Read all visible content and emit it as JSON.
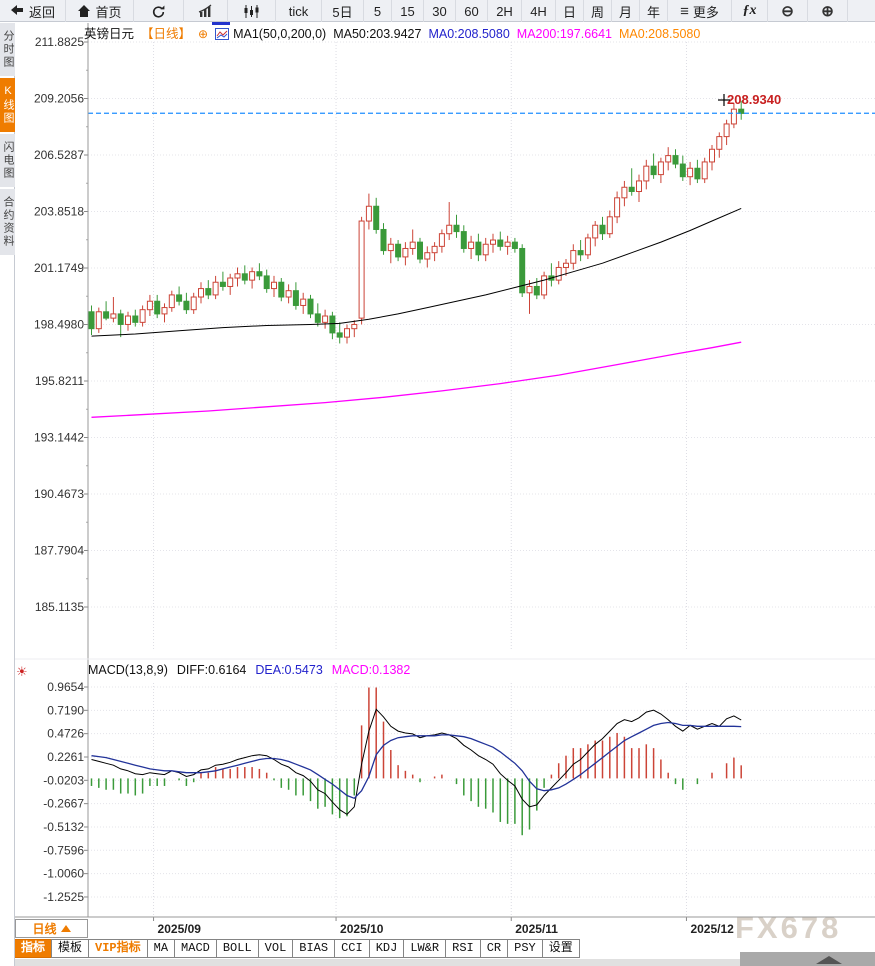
{
  "toolbar": {
    "items": [
      {
        "id": "back",
        "label": "返回"
      },
      {
        "id": "home",
        "label": "首页"
      },
      {
        "id": "refresh",
        "label": ""
      },
      {
        "id": "area-chart",
        "label": ""
      },
      {
        "id": "candle-chart",
        "label": ""
      },
      {
        "id": "tick",
        "label": "tick"
      },
      {
        "id": "5d",
        "label": "5日"
      },
      {
        "id": "m5",
        "label": "5"
      },
      {
        "id": "m15",
        "label": "15"
      },
      {
        "id": "m30",
        "label": "30"
      },
      {
        "id": "m60",
        "label": "60"
      },
      {
        "id": "h2",
        "label": "2H"
      },
      {
        "id": "h4",
        "label": "4H"
      },
      {
        "id": "day",
        "label": "日"
      },
      {
        "id": "week",
        "label": "周"
      },
      {
        "id": "month",
        "label": "月"
      },
      {
        "id": "year",
        "label": "年"
      },
      {
        "id": "more",
        "label": "更多"
      },
      {
        "id": "fx",
        "label": "ƒx"
      },
      {
        "id": "zoom-out",
        "label": "⊖"
      },
      {
        "id": "zoom-in",
        "label": "⊕"
      }
    ]
  },
  "sidebar": {
    "items": [
      {
        "label": "分时图",
        "active": false
      },
      {
        "label": "K线图",
        "active": true
      },
      {
        "label": "闪电图",
        "active": false
      },
      {
        "label": "合约资料",
        "active": false
      }
    ]
  },
  "chart_header": {
    "symbol": "英镑日元",
    "period_tag": "【日线】",
    "plus_icon": "⊕",
    "ma_settings": "MA1(50,0,200,0)",
    "ma50_label": "MA50:203.9427",
    "ma0_blue_label": "MA0:208.5080",
    "ma200_label": "MA200:197.6641",
    "ma0_orange_label": "MA0:208.5080"
  },
  "macd_header": {
    "title": "MACD(13,8,9)",
    "diff_label": "DIFF:0.6164",
    "dea_label": "DEA:0.5473",
    "macd_label": "MACD:0.1382"
  },
  "bottom": {
    "interval_label": "日线",
    "tabs": [
      {
        "label": "指标",
        "style": "active"
      },
      {
        "label": "模板",
        "style": "normal"
      },
      {
        "label": "VIP指标",
        "style": "vip"
      },
      {
        "label": "MA",
        "style": "normal"
      },
      {
        "label": "MACD",
        "style": "normal"
      },
      {
        "label": "BOLL",
        "style": "normal"
      },
      {
        "label": "VOL",
        "style": "normal"
      },
      {
        "label": "BIAS",
        "style": "normal"
      },
      {
        "label": "CCI",
        "style": "normal"
      },
      {
        "label": "KDJ",
        "style": "normal"
      },
      {
        "label": "LW&R",
        "style": "normal"
      },
      {
        "label": "RSI",
        "style": "normal"
      },
      {
        "label": "CR",
        "style": "normal"
      },
      {
        "label": "PSY",
        "style": "normal"
      },
      {
        "label": "设置",
        "style": "normal"
      }
    ]
  },
  "watermark": "FX678",
  "chart_data": [
    {
      "type": "candlestick",
      "title": "英镑日元 日线 (GBP/JPY daily)",
      "ylabel": "price",
      "y_ticks": [
        "211.8825",
        "209.2056",
        "206.5287",
        "203.8518",
        "201.1749",
        "198.4980",
        "195.8211",
        "193.1442",
        "190.4673",
        "187.7904",
        "185.1135"
      ],
      "x_ticks": [
        {
          "index": 9,
          "label": "2025/09"
        },
        {
          "index": 34,
          "label": "2025/10"
        },
        {
          "index": 58,
          "label": "2025/11"
        },
        {
          "index": 82,
          "label": "2025/12"
        }
      ],
      "last_price": 208.508,
      "marked_price_label": "208.9340",
      "colors": {
        "up": "#cc4437",
        "down": "#3a9a3a",
        "ma50": "#000000",
        "ma200": "#ff00ff",
        "last_price_line": "#1e8fff",
        "marked_price_text": "#c82020"
      },
      "ohlc": [
        [
          199.1,
          199.4,
          198.0,
          198.3
        ],
        [
          198.3,
          199.3,
          198.1,
          199.1
        ],
        [
          199.1,
          199.6,
          198.7,
          198.8
        ],
        [
          198.8,
          199.8,
          198.6,
          199.0
        ],
        [
          199.0,
          199.2,
          197.9,
          198.5
        ],
        [
          198.5,
          199.1,
          198.2,
          198.9
        ],
        [
          198.9,
          199.2,
          198.4,
          198.6
        ],
        [
          198.6,
          199.4,
          198.4,
          199.2
        ],
        [
          199.2,
          199.9,
          198.9,
          199.6
        ],
        [
          199.6,
          199.9,
          198.8,
          199.0
        ],
        [
          199.0,
          199.5,
          198.6,
          199.3
        ],
        [
          199.3,
          200.1,
          199.1,
          199.9
        ],
        [
          199.9,
          200.3,
          199.4,
          199.6
        ],
        [
          199.6,
          200.0,
          199.0,
          199.2
        ],
        [
          199.2,
          200.0,
          199.0,
          199.8
        ],
        [
          199.8,
          200.5,
          199.5,
          200.2
        ],
        [
          200.2,
          200.6,
          199.7,
          199.9
        ],
        [
          199.9,
          200.8,
          199.7,
          200.5
        ],
        [
          200.5,
          201.0,
          200.1,
          200.3
        ],
        [
          200.3,
          200.9,
          199.9,
          200.7
        ],
        [
          200.7,
          201.2,
          200.3,
          200.9
        ],
        [
          200.9,
          201.3,
          200.4,
          200.6
        ],
        [
          200.6,
          201.2,
          200.2,
          201.0
        ],
        [
          201.0,
          201.4,
          200.6,
          200.8
        ],
        [
          200.8,
          201.1,
          200.0,
          200.2
        ],
        [
          200.2,
          200.8,
          199.8,
          200.5
        ],
        [
          200.5,
          200.7,
          199.6,
          199.8
        ],
        [
          199.8,
          200.4,
          199.5,
          200.1
        ],
        [
          200.1,
          200.5,
          199.2,
          199.4
        ],
        [
          199.4,
          200.0,
          199.0,
          199.7
        ],
        [
          199.7,
          199.9,
          198.8,
          199.0
        ],
        [
          199.0,
          199.5,
          198.4,
          198.6
        ],
        [
          198.6,
          199.2,
          198.3,
          198.9
        ],
        [
          198.9,
          199.1,
          197.8,
          198.1
        ],
        [
          198.1,
          198.6,
          197.6,
          197.9
        ],
        [
          197.9,
          198.5,
          197.6,
          198.3
        ],
        [
          198.3,
          198.7,
          197.9,
          198.5
        ],
        [
          198.8,
          203.6,
          198.5,
          203.4
        ],
        [
          203.4,
          204.7,
          203.0,
          204.1
        ],
        [
          204.1,
          204.5,
          202.8,
          203.0
        ],
        [
          203.0,
          203.3,
          201.8,
          202.0
        ],
        [
          202.0,
          202.6,
          201.4,
          202.3
        ],
        [
          202.3,
          202.5,
          201.5,
          201.7
        ],
        [
          201.7,
          202.4,
          201.3,
          202.1
        ],
        [
          202.1,
          203.0,
          201.8,
          202.4
        ],
        [
          202.4,
          202.6,
          201.4,
          201.6
        ],
        [
          201.6,
          202.2,
          201.2,
          201.9
        ],
        [
          201.9,
          202.4,
          201.5,
          202.2
        ],
        [
          202.2,
          203.0,
          201.9,
          202.8
        ],
        [
          202.8,
          204.3,
          202.5,
          203.2
        ],
        [
          203.2,
          203.7,
          202.6,
          202.9
        ],
        [
          202.9,
          203.2,
          201.9,
          202.1
        ],
        [
          202.1,
          202.7,
          201.6,
          202.4
        ],
        [
          202.4,
          202.8,
          201.5,
          201.8
        ],
        [
          201.8,
          202.6,
          201.5,
          202.3
        ],
        [
          202.3,
          202.8,
          201.9,
          202.5
        ],
        [
          202.5,
          202.9,
          202.0,
          202.2
        ],
        [
          202.2,
          202.7,
          201.8,
          202.4
        ],
        [
          202.4,
          202.6,
          201.9,
          202.1
        ],
        [
          202.1,
          202.3,
          199.8,
          200.0
        ],
        [
          200.0,
          200.6,
          199.0,
          200.3
        ],
        [
          200.3,
          200.7,
          199.7,
          199.9
        ],
        [
          199.9,
          201.0,
          199.7,
          200.8
        ],
        [
          200.8,
          201.4,
          200.3,
          200.6
        ],
        [
          200.6,
          201.5,
          200.4,
          201.2
        ],
        [
          201.2,
          201.6,
          200.8,
          201.4
        ],
        [
          201.4,
          202.3,
          201.1,
          202.0
        ],
        [
          202.0,
          202.5,
          201.5,
          201.8
        ],
        [
          201.8,
          202.8,
          201.6,
          202.6
        ],
        [
          202.6,
          203.4,
          202.2,
          203.2
        ],
        [
          203.2,
          203.6,
          202.5,
          202.8
        ],
        [
          202.8,
          203.9,
          202.6,
          203.6
        ],
        [
          203.6,
          204.8,
          203.3,
          204.5
        ],
        [
          204.5,
          205.3,
          204.1,
          205.0
        ],
        [
          205.0,
          205.9,
          204.6,
          204.8
        ],
        [
          204.8,
          205.6,
          204.3,
          205.3
        ],
        [
          205.3,
          206.3,
          204.9,
          206.0
        ],
        [
          206.0,
          206.6,
          205.4,
          205.6
        ],
        [
          205.6,
          206.4,
          205.2,
          206.2
        ],
        [
          206.2,
          206.9,
          205.8,
          206.5
        ],
        [
          206.5,
          206.8,
          205.9,
          206.1
        ],
        [
          206.1,
          206.5,
          205.3,
          205.5
        ],
        [
          205.5,
          206.2,
          205.1,
          205.9
        ],
        [
          205.9,
          206.3,
          205.2,
          205.4
        ],
        [
          205.4,
          206.4,
          205.2,
          206.2
        ],
        [
          206.2,
          207.0,
          205.8,
          206.8
        ],
        [
          206.8,
          207.6,
          206.4,
          207.4
        ],
        [
          207.4,
          208.2,
          207.0,
          208.0
        ],
        [
          208.0,
          209.0,
          207.8,
          208.7
        ],
        [
          208.7,
          209.1,
          208.2,
          208.5
        ]
      ],
      "ma50_points": [
        [
          0,
          197.95
        ],
        [
          6,
          198.05
        ],
        [
          12,
          198.2
        ],
        [
          18,
          198.35
        ],
        [
          24,
          198.45
        ],
        [
          30,
          198.5
        ],
        [
          34,
          198.55
        ],
        [
          38,
          198.75
        ],
        [
          42,
          199.0
        ],
        [
          46,
          199.3
        ],
        [
          50,
          199.6
        ],
        [
          54,
          199.9
        ],
        [
          58,
          200.25
        ],
        [
          62,
          200.6
        ],
        [
          66,
          201.0
        ],
        [
          70,
          201.4
        ],
        [
          74,
          201.9
        ],
        [
          78,
          202.4
        ],
        [
          82,
          202.95
        ],
        [
          85,
          203.4
        ],
        [
          89,
          204.0
        ]
      ],
      "ma200_points": [
        [
          0,
          194.1
        ],
        [
          8,
          194.25
        ],
        [
          16,
          194.4
        ],
        [
          24,
          194.6
        ],
        [
          32,
          194.8
        ],
        [
          40,
          195.05
        ],
        [
          48,
          195.35
        ],
        [
          56,
          195.7
        ],
        [
          64,
          196.1
        ],
        [
          72,
          196.6
        ],
        [
          80,
          197.1
        ],
        [
          85,
          197.4
        ],
        [
          89,
          197.66
        ]
      ]
    },
    {
      "type": "macd",
      "title": "MACD(13,8,9)",
      "note": "histogram bar = 2*(diff-dea); red above 0, green below 0",
      "y_ticks": [
        "0.9654",
        "0.7190",
        "0.4726",
        "0.2261",
        "-0.0203",
        "-0.2667",
        "-0.5132",
        "-0.7596",
        "-1.0060",
        "-1.2525"
      ],
      "colors": {
        "diff": "#000000",
        "dea": "#223399",
        "bar_up": "#cc4437",
        "bar_down": "#3a9a3a"
      },
      "diff": [
        0.2,
        0.18,
        0.16,
        0.14,
        0.1,
        0.08,
        0.05,
        0.04,
        0.06,
        0.05,
        0.04,
        0.08,
        0.06,
        0.02,
        0.04,
        0.09,
        0.1,
        0.14,
        0.15,
        0.17,
        0.2,
        0.22,
        0.24,
        0.25,
        0.24,
        0.2,
        0.15,
        0.12,
        0.06,
        0.03,
        -0.03,
        -0.12,
        -0.16,
        -0.25,
        -0.33,
        -0.38,
        -0.3,
        0.15,
        0.5,
        0.73,
        0.65,
        0.55,
        0.5,
        0.48,
        0.47,
        0.43,
        0.45,
        0.46,
        0.48,
        0.46,
        0.42,
        0.35,
        0.3,
        0.24,
        0.2,
        0.15,
        0.05,
        -0.02,
        -0.08,
        -0.22,
        -0.3,
        -0.28,
        -0.18,
        -0.1,
        -0.02,
        0.06,
        0.15,
        0.2,
        0.28,
        0.36,
        0.42,
        0.5,
        0.58,
        0.62,
        0.6,
        0.64,
        0.7,
        0.72,
        0.68,
        0.62,
        0.55,
        0.5,
        0.56,
        0.52,
        0.55,
        0.58,
        0.55,
        0.63,
        0.66,
        0.6164
      ],
      "dea": [
        0.24,
        0.23,
        0.22,
        0.2,
        0.18,
        0.16,
        0.14,
        0.12,
        0.1,
        0.09,
        0.08,
        0.08,
        0.07,
        0.06,
        0.06,
        0.06,
        0.07,
        0.08,
        0.1,
        0.12,
        0.14,
        0.16,
        0.18,
        0.2,
        0.21,
        0.21,
        0.2,
        0.18,
        0.15,
        0.12,
        0.09,
        0.04,
        -0.01,
        -0.06,
        -0.12,
        -0.18,
        -0.21,
        -0.13,
        0.02,
        0.25,
        0.35,
        0.4,
        0.43,
        0.44,
        0.45,
        0.45,
        0.45,
        0.45,
        0.46,
        0.46,
        0.45,
        0.44,
        0.42,
        0.39,
        0.36,
        0.33,
        0.28,
        0.22,
        0.16,
        0.08,
        -0.03,
        -0.11,
        -0.13,
        -0.12,
        -0.1,
        -0.06,
        -0.01,
        0.04,
        0.1,
        0.16,
        0.22,
        0.28,
        0.34,
        0.4,
        0.44,
        0.48,
        0.52,
        0.56,
        0.58,
        0.59,
        0.58,
        0.56,
        0.56,
        0.55,
        0.55,
        0.55,
        0.55,
        0.55,
        0.55,
        0.5473
      ]
    }
  ]
}
